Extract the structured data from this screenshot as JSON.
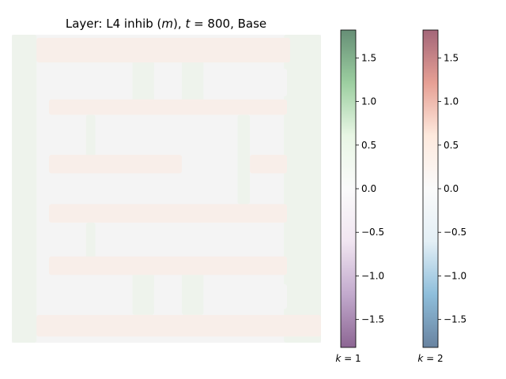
{
  "chart_data": {
    "type": "heatmap",
    "title": "Layer: L4 inhib (m), t = 800, Base",
    "title_parts": {
      "prefix": "Layer: L4 inhib (",
      "var": "m",
      "middle": "), ",
      "tvar": "t",
      "rest": " = 800, Base"
    },
    "grid": false,
    "colorbars": [
      {
        "name_var": "k",
        "name_rest": " = 1",
        "colormap": "PRGn",
        "colors": [
          "#40004b",
          "#9970ab",
          "#e7d4e8",
          "#f7f7f7",
          "#d9f0d3",
          "#5aae61",
          "#00441b"
        ],
        "range": [
          -1.82,
          1.82
        ],
        "ticks": [
          -1.5,
          -1.0,
          -0.5,
          0.0,
          0.5,
          1.0,
          1.5
        ],
        "tick_labels": [
          "−1.5",
          "−1.0",
          "−0.5",
          "0.0",
          "0.5",
          "1.0",
          "1.5"
        ]
      },
      {
        "name_var": "k",
        "name_rest": " = 2",
        "colormap": "RdBu_r",
        "colors": [
          "#053061",
          "#4393c3",
          "#d1e5f0",
          "#f7f7f7",
          "#fddbc7",
          "#d6604d",
          "#67001f"
        ],
        "range": [
          -1.82,
          1.82
        ],
        "ticks": [
          -1.5,
          -1.0,
          -0.5,
          0.0,
          0.5,
          1.0,
          1.5
        ],
        "tick_labels": [
          "−1.5",
          "−1.0",
          "−0.5",
          "0.0",
          "0.5",
          "1.0",
          "1.5"
        ]
      }
    ],
    "field": {
      "base_color": "#f4f4f4",
      "orange_tint": "#f8eee9",
      "green_tint": "#eef3ec",
      "orange_bands": [
        [
          0.08,
          0.01,
          0.9,
          0.09
        ],
        [
          0.12,
          0.21,
          0.89,
          0.26
        ],
        [
          0.12,
          0.39,
          0.55,
          0.45
        ],
        [
          0.77,
          0.39,
          0.89,
          0.45
        ],
        [
          0.12,
          0.55,
          0.89,
          0.61
        ],
        [
          0.12,
          0.72,
          0.89,
          0.78
        ],
        [
          0.08,
          0.91,
          1.0,
          0.98
        ]
      ],
      "green_bands": [
        [
          0.0,
          0.0,
          0.08,
          1.0
        ],
        [
          0.88,
          0.0,
          1.0,
          1.0
        ],
        [
          0.39,
          0.08,
          0.46,
          0.24
        ],
        [
          0.55,
          0.08,
          0.62,
          0.24
        ],
        [
          0.24,
          0.26,
          0.27,
          0.4
        ],
        [
          0.73,
          0.26,
          0.77,
          0.55
        ],
        [
          0.24,
          0.61,
          0.27,
          0.74
        ],
        [
          0.39,
          0.76,
          0.46,
          0.91
        ],
        [
          0.55,
          0.76,
          0.62,
          0.91
        ]
      ],
      "light_blocks": [
        [
          0.12,
          0.11,
          0.39,
          0.2
        ],
        [
          0.46,
          0.11,
          0.55,
          0.2
        ],
        [
          0.62,
          0.11,
          0.89,
          0.2
        ],
        [
          0.12,
          0.81,
          0.39,
          0.89
        ],
        [
          0.46,
          0.81,
          0.55,
          0.89
        ],
        [
          0.62,
          0.81,
          0.89,
          0.89
        ]
      ]
    }
  }
}
